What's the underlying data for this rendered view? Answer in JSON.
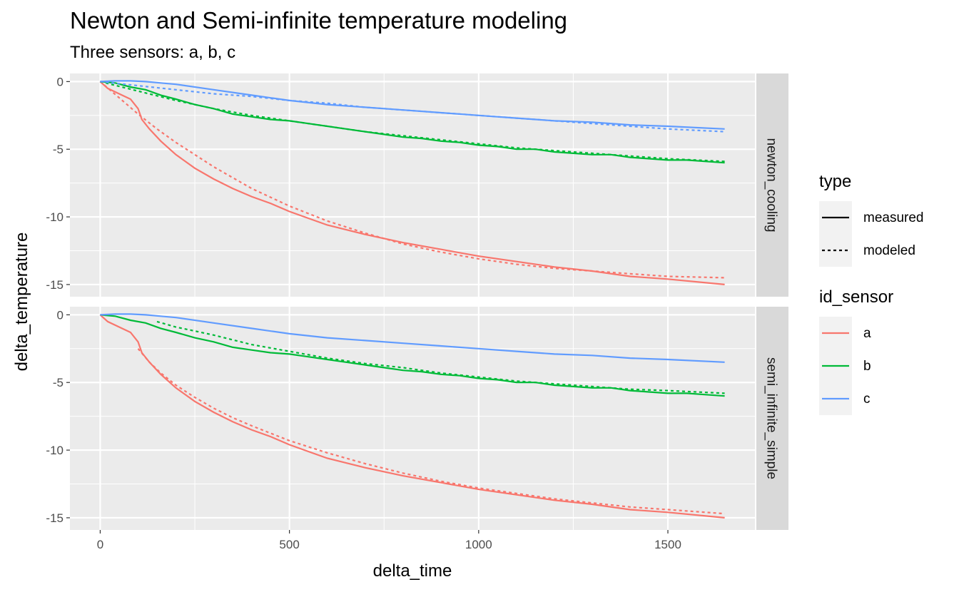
{
  "chart_data": {
    "type": "line",
    "title": "Newton and Semi-infinite temperature modeling",
    "subtitle": "Three sensors: a, b, c",
    "xlabel": "delta_time",
    "ylabel": "delta_temperature",
    "xlim": [
      -80,
      1730
    ],
    "ylim": [
      -15.9,
      0.6
    ],
    "x_ticks": [
      0,
      500,
      1000,
      1500
    ],
    "x_tick_labels": [
      "0",
      "500",
      "1000",
      "1500"
    ],
    "y_ticks": [
      0,
      -5,
      -10,
      -15
    ],
    "y_tick_labels": [
      "0",
      "-5",
      "-10",
      "-15"
    ],
    "grid": true,
    "legend_placement": "right",
    "facet_labels": [
      "newton_cooling",
      "semi_infinite_simple"
    ],
    "legends": [
      {
        "title": "type",
        "entries": [
          {
            "label": "measured",
            "linetype": "solid"
          },
          {
            "label": "modeled",
            "linetype": "dashed"
          }
        ]
      },
      {
        "title": "id_sensor",
        "entries": [
          {
            "label": "a",
            "color": "#F8766D"
          },
          {
            "label": "b",
            "color": "#00BA38"
          },
          {
            "label": "c",
            "color": "#619CFF"
          }
        ]
      }
    ],
    "measured": {
      "a": {
        "x": [
          0,
          20,
          50,
          80,
          100,
          110,
          130,
          160,
          200,
          250,
          300,
          350,
          400,
          450,
          500,
          550,
          600,
          700,
          800,
          900,
          1000,
          1100,
          1200,
          1300,
          1400,
          1500,
          1650
        ],
        "y": [
          0,
          -0.5,
          -0.9,
          -1.3,
          -2.0,
          -2.8,
          -3.5,
          -4.4,
          -5.4,
          -6.4,
          -7.2,
          -7.9,
          -8.5,
          -9.0,
          -9.6,
          -10.1,
          -10.6,
          -11.3,
          -11.9,
          -12.4,
          -12.9,
          -13.3,
          -13.7,
          -14.0,
          -14.4,
          -14.6,
          -15.0
        ]
      },
      "b": {
        "x": [
          0,
          40,
          80,
          120,
          160,
          200,
          250,
          300,
          350,
          400,
          450,
          500,
          550,
          600,
          650,
          700,
          750,
          800,
          850,
          900,
          950,
          1000,
          1050,
          1100,
          1150,
          1200,
          1250,
          1300,
          1350,
          1400,
          1450,
          1500,
          1550,
          1600,
          1650
        ],
        "y": [
          0,
          -0.1,
          -0.4,
          -0.6,
          -1.0,
          -1.3,
          -1.7,
          -2.0,
          -2.4,
          -2.6,
          -2.8,
          -2.9,
          -3.1,
          -3.3,
          -3.5,
          -3.7,
          -3.9,
          -4.1,
          -4.2,
          -4.4,
          -4.5,
          -4.7,
          -4.8,
          -5.0,
          -5.0,
          -5.2,
          -5.3,
          -5.4,
          -5.4,
          -5.6,
          -5.7,
          -5.8,
          -5.8,
          -5.9,
          -6.0
        ]
      },
      "c": {
        "x": [
          0,
          40,
          80,
          120,
          160,
          200,
          300,
          400,
          500,
          600,
          700,
          800,
          900,
          1000,
          1100,
          1200,
          1300,
          1400,
          1500,
          1650
        ],
        "y": [
          0,
          0.05,
          0.05,
          0.0,
          -0.1,
          -0.2,
          -0.6,
          -1.0,
          -1.4,
          -1.7,
          -1.9,
          -2.1,
          -2.3,
          -2.5,
          -2.7,
          -2.9,
          -3.0,
          -3.2,
          -3.3,
          -3.5
        ]
      }
    },
    "series": [
      {
        "facet": "newton_cooling",
        "sensor": "a",
        "type": "modeled",
        "x": [
          0,
          50,
          100,
          150,
          200,
          300,
          400,
          500,
          600,
          700,
          800,
          900,
          1000,
          1100,
          1200,
          1300,
          1400,
          1500,
          1650
        ],
        "y": [
          0,
          -1.2,
          -2.4,
          -3.5,
          -4.5,
          -6.3,
          -7.9,
          -9.2,
          -10.3,
          -11.2,
          -12.0,
          -12.6,
          -13.1,
          -13.5,
          -13.8,
          -14.0,
          -14.2,
          -14.4,
          -14.5
        ]
      },
      {
        "facet": "newton_cooling",
        "sensor": "b",
        "type": "modeled",
        "x": [
          0,
          100,
          200,
          300,
          400,
          500,
          600,
          700,
          800,
          900,
          1000,
          1100,
          1200,
          1300,
          1400,
          1500,
          1650
        ],
        "y": [
          0,
          -0.7,
          -1.4,
          -2.0,
          -2.5,
          -2.9,
          -3.3,
          -3.7,
          -4.0,
          -4.3,
          -4.6,
          -4.9,
          -5.1,
          -5.3,
          -5.5,
          -5.7,
          -5.9
        ]
      },
      {
        "facet": "newton_cooling",
        "sensor": "c",
        "type": "modeled",
        "x": [
          0,
          100,
          200,
          300,
          400,
          500,
          600,
          700,
          800,
          900,
          1000,
          1100,
          1200,
          1300,
          1400,
          1500,
          1650
        ],
        "y": [
          0,
          -0.3,
          -0.6,
          -0.9,
          -1.1,
          -1.4,
          -1.6,
          -1.9,
          -2.1,
          -2.3,
          -2.5,
          -2.7,
          -2.9,
          -3.1,
          -3.3,
          -3.5,
          -3.7
        ]
      },
      {
        "facet": "semi_infinite_simple",
        "sensor": "a",
        "type": "modeled",
        "x": [
          100,
          130,
          160,
          200,
          250,
          300,
          350,
          400,
          500,
          600,
          700,
          800,
          900,
          1000,
          1100,
          1200,
          1300,
          1400,
          1500,
          1650
        ],
        "y": [
          -2.5,
          -3.5,
          -4.3,
          -5.2,
          -6.1,
          -6.9,
          -7.6,
          -8.2,
          -9.3,
          -10.2,
          -11.0,
          -11.7,
          -12.3,
          -12.8,
          -13.2,
          -13.6,
          -13.9,
          -14.2,
          -14.4,
          -14.7
        ]
      },
      {
        "facet": "semi_infinite_simple",
        "sensor": "b",
        "type": "modeled",
        "x": [
          150,
          200,
          250,
          300,
          400,
          500,
          600,
          700,
          800,
          900,
          1000,
          1100,
          1200,
          1300,
          1400,
          1500,
          1650
        ],
        "y": [
          -0.5,
          -0.9,
          -1.2,
          -1.5,
          -2.2,
          -2.7,
          -3.2,
          -3.6,
          -3.9,
          -4.3,
          -4.6,
          -4.9,
          -5.1,
          -5.3,
          -5.5,
          -5.6,
          -5.8
        ]
      }
    ]
  }
}
